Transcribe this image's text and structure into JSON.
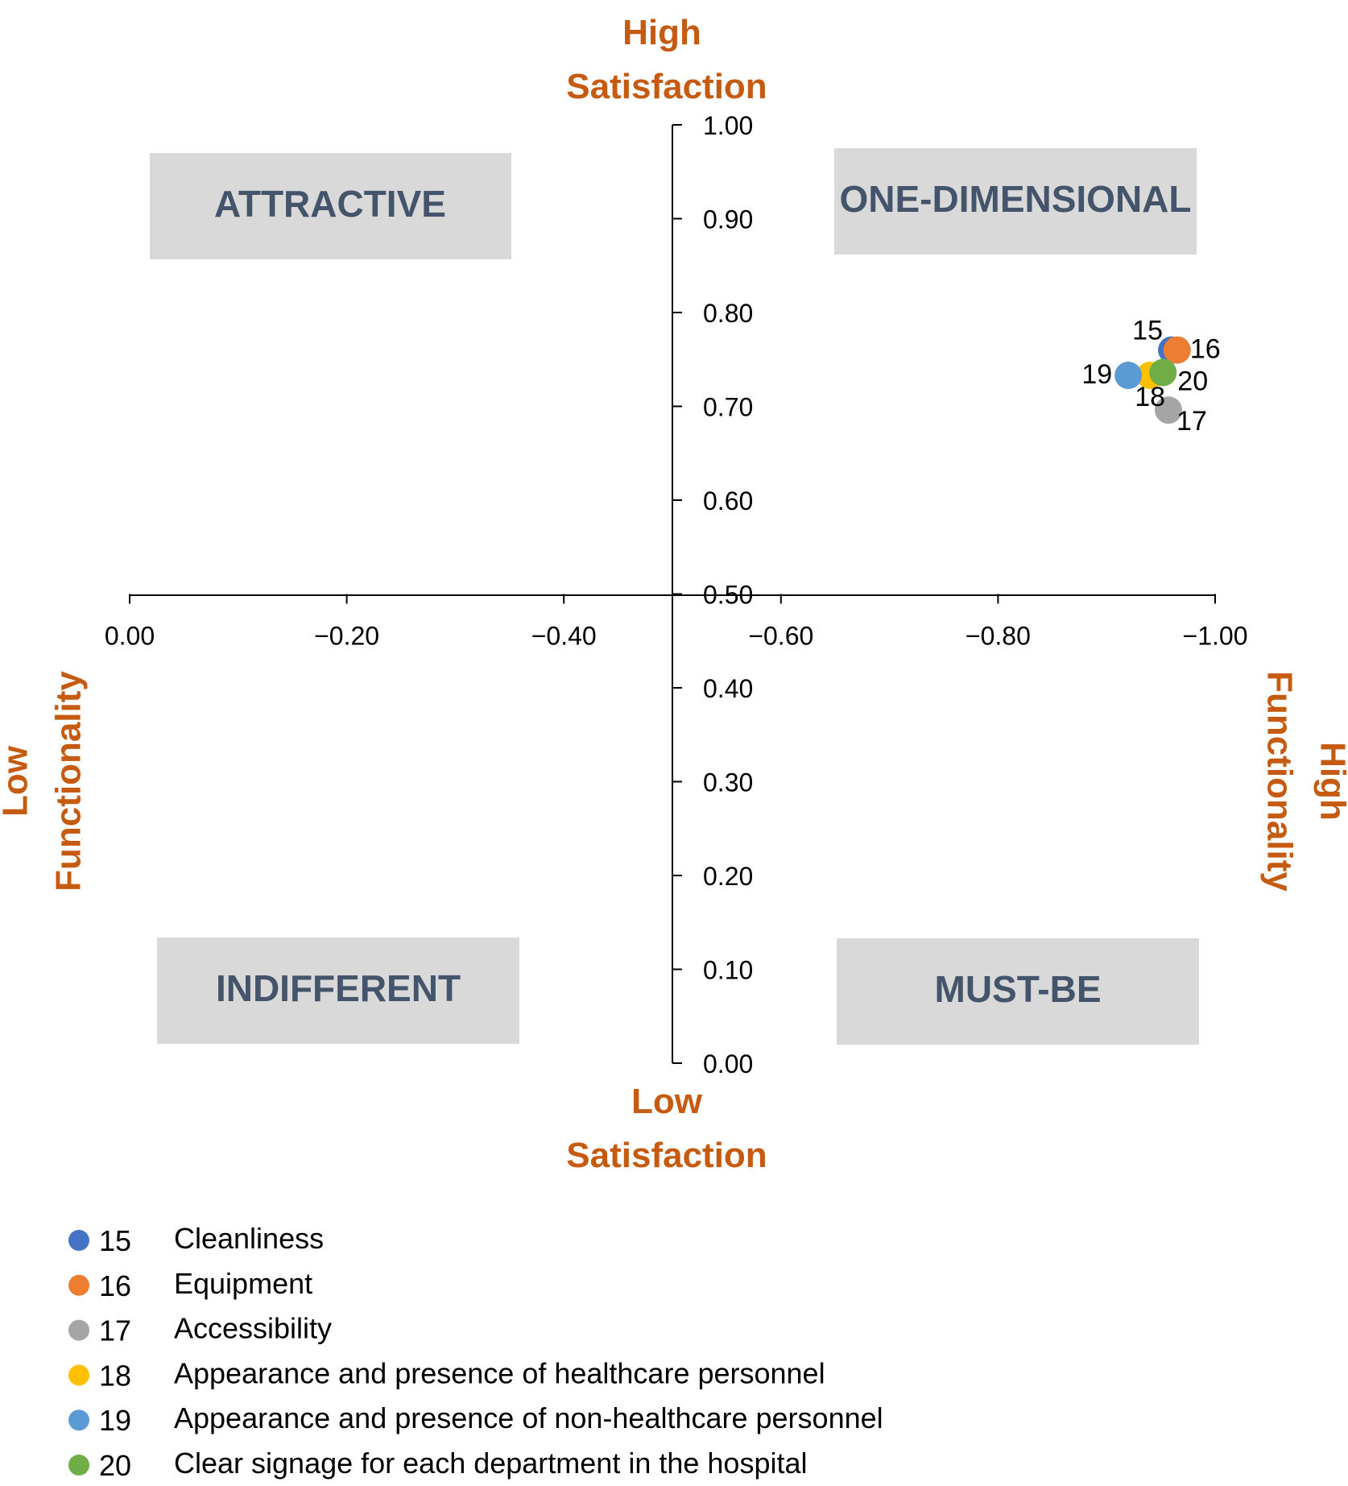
{
  "chart_data": {
    "type": "scatter",
    "x": {
      "range": [
        0.0,
        -1.0
      ],
      "ticks": [
        "0.00",
        "−0.20",
        "−0.40",
        "−0.60",
        "−0.80",
        "−1.00"
      ],
      "tick_values": [
        0.0,
        -0.2,
        -0.4,
        -0.6,
        -0.8,
        -1.0
      ],
      "label_low": [
        "Low",
        "Functionality"
      ],
      "label_high": [
        "High",
        "Functionality"
      ]
    },
    "y": {
      "range": [
        0.0,
        1.0
      ],
      "ticks": [
        "0.00",
        "0.10",
        "0.20",
        "0.30",
        "0.40",
        "0.50",
        "0.60",
        "0.70",
        "0.80",
        "0.90",
        "1.00"
      ],
      "tick_values": [
        0.0,
        0.1,
        0.2,
        0.3,
        0.4,
        0.5,
        0.6,
        0.7,
        0.8,
        0.9,
        1.0
      ],
      "label_top": [
        "High",
        "Satisfaction"
      ],
      "label_bottom": [
        "Low",
        "Satisfaction"
      ]
    },
    "crosses_at": {
      "x": -0.5,
      "y": 0.5
    },
    "quadrants": {
      "top_left": "ATTRACTIVE",
      "top_right": "ONE-DIMENSIONAL",
      "bottom_left": "INDIFFERENT",
      "bottom_right": "MUST-BE"
    },
    "series": [
      {
        "id": "15",
        "name": "Cleanliness",
        "x": -0.96,
        "y": 0.76,
        "color": "#4472C4",
        "label_side": "top-left"
      },
      {
        "id": "16",
        "name": "Equipment",
        "x": -0.965,
        "y": 0.76,
        "color": "#ED7D31",
        "label_side": "right"
      },
      {
        "id": "17",
        "name": "Accessibility",
        "x": -0.957,
        "y": 0.696,
        "color": "#A5A5A5",
        "label_side": "right-below"
      },
      {
        "id": "18",
        "name": "Appearance and presence of healthcare personnel",
        "x": -0.94,
        "y": 0.733,
        "color": "#FFC000",
        "label_side": "below"
      },
      {
        "id": "19",
        "name": "Appearance and presence of non-healthcare personnel",
        "x": -0.92,
        "y": 0.733,
        "color": "#5B9BD5",
        "label_side": "left"
      },
      {
        "id": "20",
        "name": "Clear signage for each department in the hospital",
        "x": -0.952,
        "y": 0.736,
        "color": "#70AD47",
        "label_side": "right-below-near"
      }
    ],
    "colors": {
      "axis_title": "#C55A11",
      "quadrant_fill": "#D9D9D9",
      "quadrant_text": "#44546A",
      "axis_line": "#000000"
    }
  }
}
